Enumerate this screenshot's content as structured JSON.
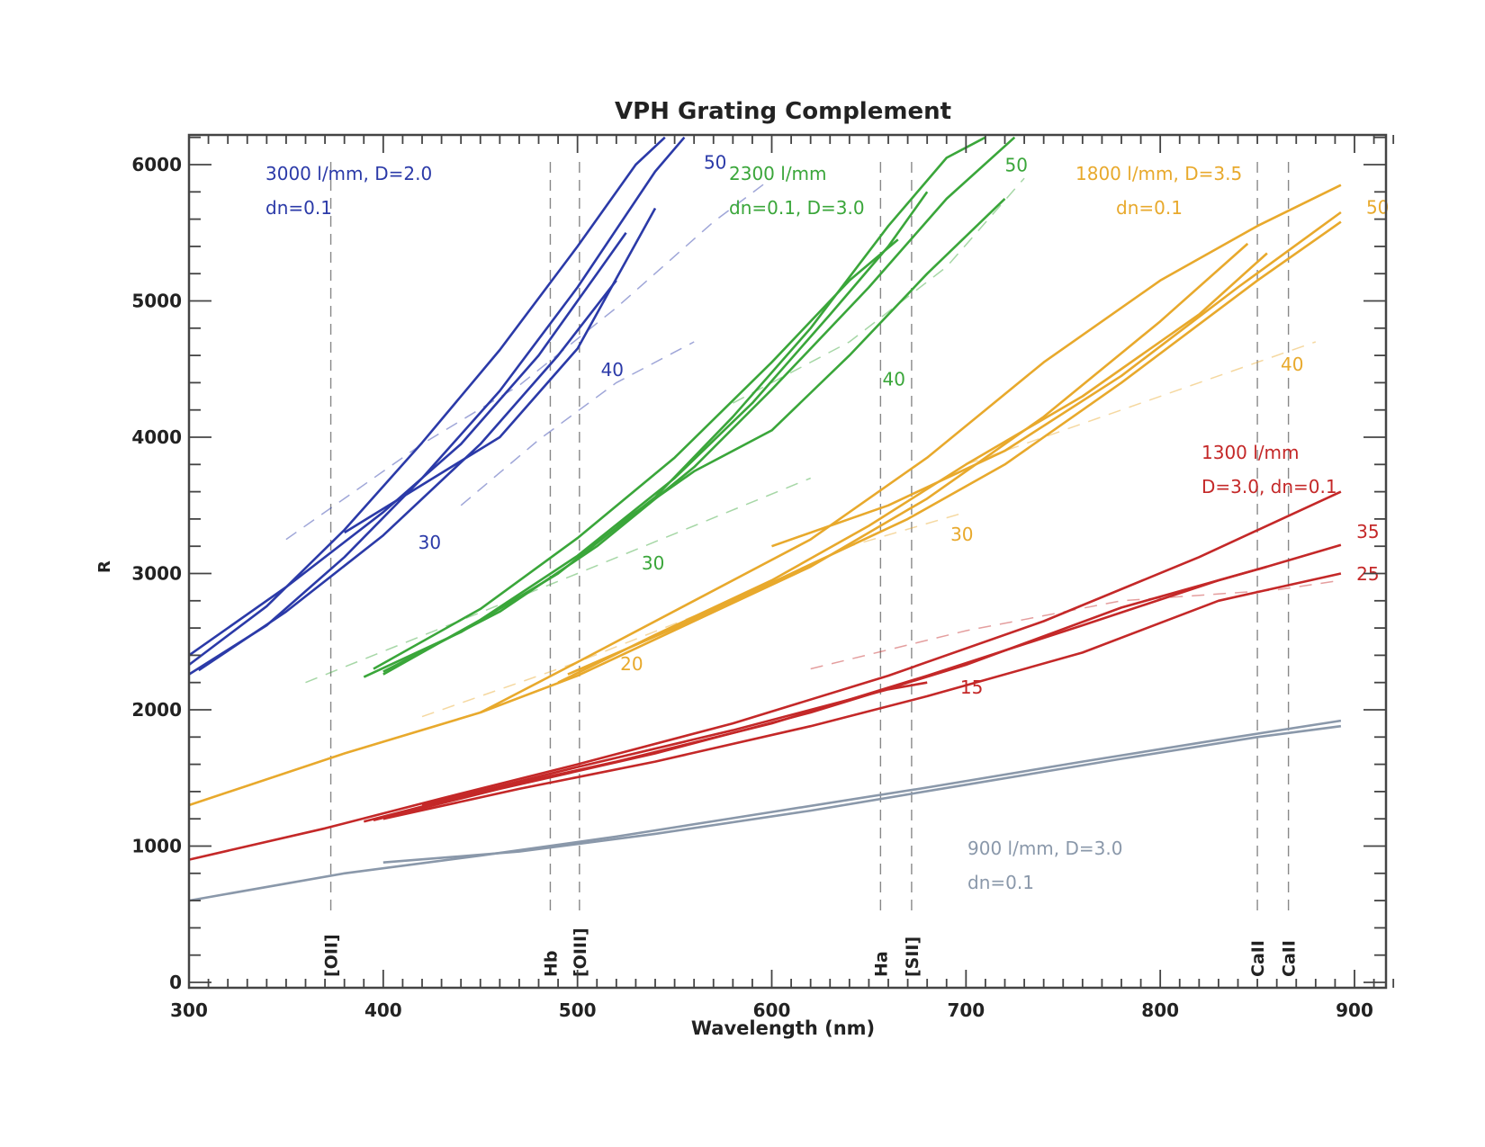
{
  "chart_data": {
    "type": "line",
    "title": "VPH Grating Complement",
    "xlabel": "Wavelength (nm)",
    "ylabel": "R",
    "xlim": [
      300,
      920
    ],
    "ylim": [
      0,
      6200
    ],
    "xticks": [
      300,
      400,
      500,
      600,
      700,
      800,
      900
    ],
    "yticks": [
      0,
      1000,
      2000,
      3000,
      4000,
      5000,
      6000
    ],
    "grid": false,
    "reference_lines": [
      {
        "label": "[OII]",
        "x": 373
      },
      {
        "label": "Hb",
        "x": 486
      },
      {
        "label": "[OIII]",
        "x": 501
      },
      {
        "label": "Ha",
        "x": 656
      },
      {
        "label": "[SII]",
        "x": 672
      },
      {
        "label": "CaII",
        "x": 850
      },
      {
        "label": "CaII",
        "x": 866
      }
    ],
    "series": [
      {
        "name": "3000 l/mm, D=2.0, dn=0.1",
        "label_lines": [
          "3000 l/mm, D=2.0",
          "dn=0.1"
        ],
        "color": "#2b3aa8",
        "angle_labels": [
          {
            "text": "30",
            "x": 418,
            "y": 3180
          },
          {
            "text": "40",
            "x": 512,
            "y": 4450
          },
          {
            "text": "50",
            "x": 565,
            "y": 5970
          }
        ],
        "curves": [
          [
            [
              300,
              2330
            ],
            [
              340,
              2760
            ],
            [
              380,
              3320
            ],
            [
              420,
              3960
            ],
            [
              460,
              4640
            ],
            [
              500,
              5400
            ],
            [
              530,
              6000
            ],
            [
              545,
              6200
            ]
          ],
          [
            [
              300,
              2260
            ],
            [
              340,
              2620
            ],
            [
              380,
              3120
            ],
            [
              420,
              3700
            ],
            [
              460,
              4340
            ],
            [
              500,
              5100
            ],
            [
              540,
              5950
            ],
            [
              555,
              6200
            ]
          ],
          [
            [
              300,
              2400
            ],
            [
              350,
              2900
            ],
            [
              400,
              3450
            ],
            [
              440,
              3950
            ],
            [
              480,
              4600
            ],
            [
              510,
              5200
            ],
            [
              525,
              5500
            ]
          ],
          [
            [
              305,
              2290
            ],
            [
              350,
              2720
            ],
            [
              400,
              3280
            ],
            [
              450,
              3950
            ],
            [
              490,
              4600
            ],
            [
              520,
              5150
            ]
          ],
          [
            [
              380,
              3300
            ],
            [
              420,
              3650
            ],
            [
              460,
              4000
            ],
            [
              500,
              4650
            ],
            [
              540,
              5680
            ]
          ]
        ],
        "dashed": [
          [
            [
              350,
              3250
            ],
            [
              420,
              3950
            ],
            [
              470,
              4380
            ],
            [
              520,
              4950
            ],
            [
              570,
              5580
            ],
            [
              600,
              5900
            ]
          ],
          [
            [
              440,
              3500
            ],
            [
              480,
              3980
            ],
            [
              520,
              4400
            ],
            [
              560,
              4700
            ]
          ]
        ]
      },
      {
        "name": "2300 l/mm, dn=0.1, D=3.0",
        "label_lines": [
          "2300 l/mm",
          "dn=0.1, D=3.0"
        ],
        "color": "#3aa63a",
        "angle_labels": [
          {
            "text": "30",
            "x": 533,
            "y": 3030
          },
          {
            "text": "40",
            "x": 657,
            "y": 4380
          },
          {
            "text": "50",
            "x": 720,
            "y": 5950
          }
        ],
        "curves": [
          [
            [
              390,
              2240
            ],
            [
              440,
              2570
            ],
            [
              490,
              3000
            ],
            [
              540,
              3560
            ],
            [
              580,
              4150
            ],
            [
              620,
              4800
            ],
            [
              660,
              5550
            ],
            [
              690,
              6050
            ],
            [
              710,
              6200
            ]
          ],
          [
            [
              400,
              2260
            ],
            [
              450,
              2660
            ],
            [
              500,
              3130
            ],
            [
              550,
              3700
            ],
            [
              590,
              4250
            ],
            [
              630,
              4900
            ],
            [
              660,
              5400
            ],
            [
              680,
              5800
            ]
          ],
          [
            [
              395,
              2300
            ],
            [
              450,
              2740
            ],
            [
              500,
              3260
            ],
            [
              550,
              3850
            ],
            [
              600,
              4550
            ],
            [
              640,
              5150
            ],
            [
              665,
              5450
            ]
          ],
          [
            [
              400,
              2280
            ],
            [
              460,
              2720
            ],
            [
              510,
              3200
            ],
            [
              560,
              3780
            ],
            [
              600,
              4350
            ],
            [
              650,
              5100
            ],
            [
              690,
              5750
            ],
            [
              725,
              6200
            ]
          ],
          [
            [
              520,
              3350
            ],
            [
              560,
              3750
            ],
            [
              600,
              4050
            ],
            [
              640,
              4600
            ],
            [
              680,
              5200
            ],
            [
              720,
              5750
            ]
          ]
        ],
        "dashed": [
          [
            [
              360,
              2200
            ],
            [
              430,
              2600
            ],
            [
              500,
              3000
            ],
            [
              560,
              3350
            ],
            [
              620,
              3700
            ]
          ],
          [
            [
              580,
              4250
            ],
            [
              640,
              4700
            ],
            [
              690,
              5250
            ],
            [
              730,
              5900
            ]
          ]
        ]
      },
      {
        "name": "1800 l/mm, D=3.5, dn=0.1",
        "label_lines": [
          "1800 l/mm, D=3.5",
          "dn=0.1"
        ],
        "color": "#e8a92c",
        "angle_labels": [
          {
            "text": "20",
            "x": 522,
            "y": 2290
          },
          {
            "text": "30",
            "x": 692,
            "y": 3240
          },
          {
            "text": "40",
            "x": 862,
            "y": 4490
          },
          {
            "text": "50",
            "x": 906,
            "y": 5640
          }
        ],
        "curves": [
          [
            [
              300,
              1300
            ],
            [
              380,
              1680
            ],
            [
              450,
              1980
            ],
            [
              500,
              2350
            ],
            [
              560,
              2800
            ],
            [
              620,
              3250
            ],
            [
              680,
              3850
            ],
            [
              740,
              4550
            ],
            [
              800,
              5150
            ],
            [
              850,
              5550
            ],
            [
              893,
              5850
            ]
          ],
          [
            [
              450,
              1980
            ],
            [
              500,
              2250
            ],
            [
              560,
              2650
            ],
            [
              620,
              3050
            ],
            [
              680,
              3550
            ],
            [
              740,
              4150
            ],
            [
              800,
              4850
            ],
            [
              845,
              5420
            ]
          ],
          [
            [
              490,
              2200
            ],
            [
              540,
              2550
            ],
            [
              600,
              2950
            ],
            [
              650,
              3350
            ],
            [
              700,
              3800
            ],
            [
              760,
              4300
            ],
            [
              820,
              4900
            ],
            [
              855,
              5350
            ]
          ],
          [
            [
              495,
              2260
            ],
            [
              550,
              2600
            ],
            [
              610,
              3000
            ],
            [
              670,
              3400
            ],
            [
              720,
              3800
            ],
            [
              780,
              4400
            ],
            [
              850,
              5150
            ],
            [
              893,
              5580
            ]
          ],
          [
            [
              600,
              3200
            ],
            [
              660,
              3500
            ],
            [
              720,
              3900
            ],
            [
              780,
              4450
            ],
            [
              840,
              5100
            ],
            [
              893,
              5650
            ]
          ]
        ],
        "dashed": [
          [
            [
              420,
              1950
            ],
            [
              500,
              2350
            ],
            [
              580,
              2800
            ],
            [
              640,
              3200
            ],
            [
              700,
              3450
            ]
          ],
          [
            [
              700,
              3800
            ],
            [
              760,
              4100
            ],
            [
              820,
              4400
            ],
            [
              880,
              4700
            ]
          ]
        ]
      },
      {
        "name": "1300 l/mm, D=3.0, dn=0.1",
        "label_lines": [
          "1300 l/mm",
          "D=3.0, dn=0.1"
        ],
        "color": "#c42828",
        "angle_labels": [
          {
            "text": "15",
            "x": 697,
            "y": 2120
          },
          {
            "text": "25",
            "x": 901,
            "y": 2950
          },
          {
            "text": "35",
            "x": 901,
            "y": 3260
          }
        ],
        "curves": [
          [
            [
              300,
              900
            ],
            [
              370,
              1130
            ],
            [
              430,
              1350
            ],
            [
              500,
              1600
            ],
            [
              580,
              1900
            ],
            [
              660,
              2250
            ],
            [
              740,
              2650
            ],
            [
              820,
              3120
            ],
            [
              893,
              3600
            ]
          ],
          [
            [
              390,
              1180
            ],
            [
              450,
              1400
            ],
            [
              520,
              1620
            ],
            [
              600,
              1900
            ],
            [
              680,
              2250
            ],
            [
              760,
              2620
            ],
            [
              830,
              2950
            ],
            [
              855,
              3050
            ]
          ],
          [
            [
              395,
              1190
            ],
            [
              460,
              1420
            ],
            [
              540,
              1680
            ],
            [
              620,
              1980
            ],
            [
              700,
              2330
            ],
            [
              780,
              2750
            ],
            [
              855,
              3050
            ],
            [
              893,
              3210
            ]
          ],
          [
            [
              400,
              1200
            ],
            [
              470,
              1420
            ],
            [
              540,
              1620
            ],
            [
              620,
              1880
            ],
            [
              680,
              2100
            ],
            [
              760,
              2420
            ],
            [
              830,
              2800
            ],
            [
              893,
              3000
            ]
          ],
          [
            [
              420,
              1300
            ],
            [
              500,
              1580
            ],
            [
              580,
              1850
            ],
            [
              660,
              2150
            ],
            [
              680,
              2200
            ]
          ]
        ],
        "dashed": [
          [
            [
              620,
              2300
            ],
            [
              700,
              2580
            ],
            [
              780,
              2800
            ],
            [
              860,
              2880
            ],
            [
              893,
              2950
            ]
          ]
        ]
      },
      {
        "name": "900 l/mm, D=3.0, dn=0.1",
        "label_lines": [
          "900 l/mm, D=3.0",
          "dn=0.1"
        ],
        "color": "#8a98aa",
        "angle_labels": [],
        "curves": [
          [
            [
              300,
              600
            ],
            [
              380,
              800
            ],
            [
              450,
              930
            ],
            [
              520,
              1070
            ],
            [
              600,
              1250
            ],
            [
              680,
              1430
            ],
            [
              760,
              1620
            ],
            [
              830,
              1780
            ],
            [
              893,
              1920
            ]
          ],
          [
            [
              400,
              880
            ],
            [
              470,
              960
            ],
            [
              540,
              1090
            ],
            [
              620,
              1260
            ],
            [
              700,
              1450
            ],
            [
              780,
              1640
            ],
            [
              850,
              1800
            ],
            [
              893,
              1880
            ]
          ]
        ],
        "dashed": []
      }
    ]
  }
}
